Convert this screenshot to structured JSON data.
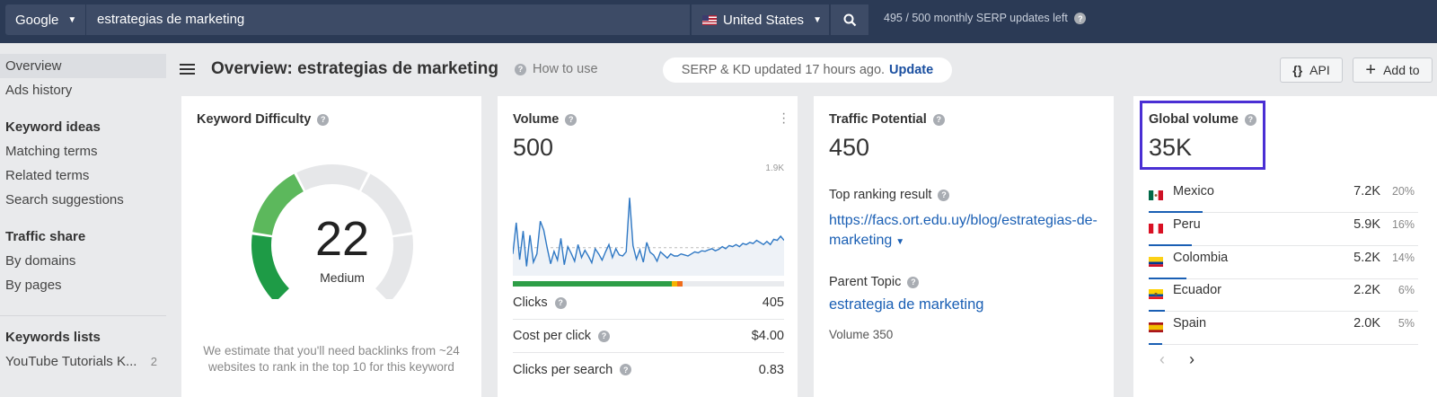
{
  "topbar": {
    "engine": "Google",
    "query": "estrategias de marketing",
    "country": "United States",
    "quota_used": "495",
    "quota_sep": "/",
    "quota_total": "500",
    "quota_text": "monthly SERP updates left"
  },
  "sidebar": {
    "items": [
      {
        "label": "Overview",
        "active": true
      },
      {
        "label": "Ads history"
      }
    ],
    "keyword_ideas_heading": "Keyword ideas",
    "keyword_ideas": [
      "Matching terms",
      "Related terms",
      "Search suggestions"
    ],
    "traffic_share_heading": "Traffic share",
    "traffic_share": [
      "By domains",
      "By pages"
    ],
    "keywords_lists_heading": "Keywords lists",
    "lists": [
      {
        "label": "YouTube Tutorials K...",
        "count": "2"
      }
    ]
  },
  "header": {
    "title": "Overview: estrategias de marketing",
    "how_to_use": "How to use",
    "serp_status": "SERP & KD updated 17 hours ago.",
    "update_link": "Update",
    "api_button": "API",
    "api_icon": "{}",
    "add_button": "Add to"
  },
  "kd": {
    "title": "Keyword Difficulty",
    "value": "22",
    "value_num": 22,
    "label": "Medium",
    "note": "We estimate that you'll need backlinks from ~24 websites to rank in the top 10 for this keyword",
    "colors": {
      "active_dark": "#1e9b46",
      "active_light": "#5cb85c",
      "track": "#e6e7e9"
    }
  },
  "volume": {
    "title": "Volume",
    "value": "500",
    "y_max_label": "1.9K",
    "clicks_label": "Clicks",
    "clicks_value": "405",
    "cpc_label": "Cost per click",
    "cpc_value": "$4.00",
    "cps_label": "Clicks per search",
    "cps_value": "0.83",
    "click_split": {
      "organic_pct": 58.5,
      "mixed_pct": 2,
      "paid_pct": 2
    }
  },
  "chart_data": {
    "type": "line",
    "ylim": [
      0,
      1900
    ],
    "ytick_labels": [
      "1.9K"
    ],
    "values": [
      420,
      1020,
      310,
      860,
      180,
      780,
      260,
      420,
      1050,
      880,
      540,
      230,
      470,
      300,
      720,
      210,
      560,
      430,
      280,
      600,
      350,
      490,
      380,
      250,
      520,
      420,
      300,
      460,
      600,
      350,
      520,
      400,
      380,
      460,
      1500,
      580,
      320,
      500,
      260,
      640,
      450,
      400,
      280,
      460,
      400,
      340,
      420,
      380,
      380,
      420,
      400,
      380,
      420,
      460,
      440,
      480,
      470,
      500,
      520,
      480,
      510,
      560,
      520,
      580,
      560,
      600,
      560,
      620,
      600,
      640,
      620,
      680,
      640,
      600,
      660,
      600,
      700,
      680,
      760,
      680
    ],
    "baseline": 540
  },
  "traffic_potential": {
    "title": "Traffic Potential",
    "value": "450",
    "top_result_label": "Top ranking result",
    "top_result_url": "https://facs.ort.edu.uy/blog/estrategias-de-marketing",
    "parent_topic_label": "Parent Topic",
    "parent_topic": "estrategia de marketing",
    "parent_volume": "Volume 350"
  },
  "global_volume": {
    "title": "Global volume",
    "value": "35K",
    "highlight_color": "#4a2fd4",
    "countries": [
      {
        "name": "Mexico",
        "value": "7.2K",
        "pct": "20%",
        "share": 0.2
      },
      {
        "name": "Peru",
        "value": "5.9K",
        "pct": "16%",
        "share": 0.16
      },
      {
        "name": "Colombia",
        "value": "5.2K",
        "pct": "14%",
        "share": 0.14
      },
      {
        "name": "Ecuador",
        "value": "2.2K",
        "pct": "6%",
        "share": 0.06
      },
      {
        "name": "Spain",
        "value": "2.0K",
        "pct": "5%",
        "share": 0.05
      }
    ],
    "prev_icon": "‹",
    "next_icon": "›"
  }
}
